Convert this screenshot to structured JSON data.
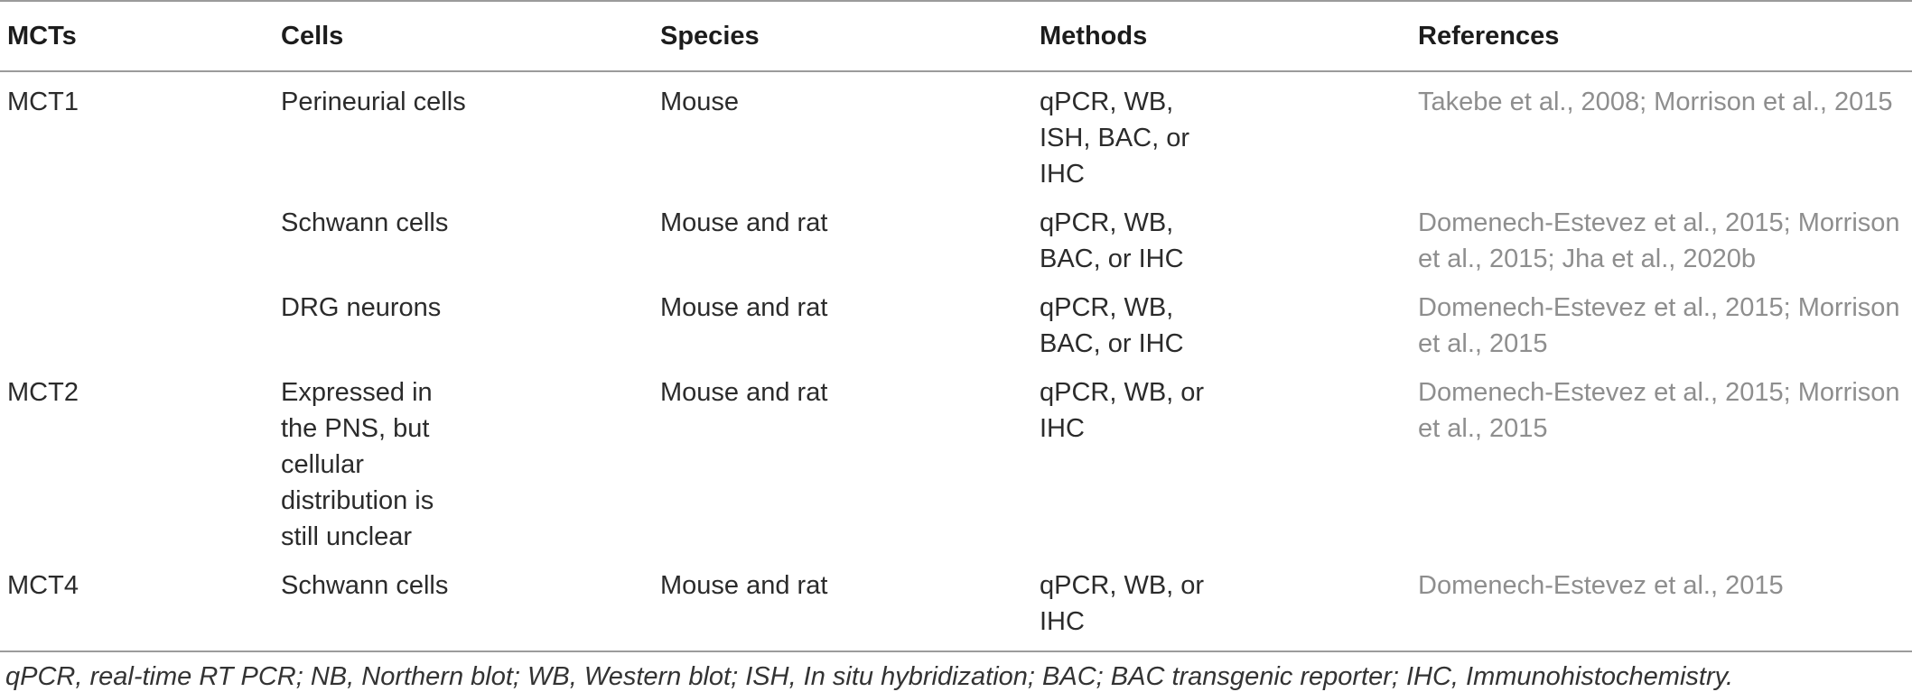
{
  "table": {
    "headers": [
      "MCTs",
      "Cells",
      "Species",
      "Methods",
      "References"
    ],
    "rows": [
      {
        "mct": "MCT1",
        "cells": "Perineurial cells",
        "species": "Mouse",
        "methods": "qPCR, WB, ISH, BAC, or IHC",
        "references": "Takebe et al., 2008; Morrison et al., 2015"
      },
      {
        "mct": "",
        "cells": "Schwann cells",
        "species": "Mouse and rat",
        "methods": "qPCR, WB, BAC, or IHC",
        "references": "Domenech-Estevez et al., 2015; Morrison et al., 2015; Jha et al., 2020b"
      },
      {
        "mct": "",
        "cells": "DRG neurons",
        "species": "Mouse and rat",
        "methods": "qPCR, WB, BAC, or IHC",
        "references": "Domenech-Estevez et al., 2015; Morrison et al., 2015"
      },
      {
        "mct": "MCT2",
        "cells": "Expressed in the PNS, but cellular distribution is still unclear",
        "species": "Mouse and rat",
        "methods": "qPCR, WB, or IHC",
        "references": "Domenech-Estevez et al., 2015; Morrison et al., 2015"
      },
      {
        "mct": "MCT4",
        "cells": "Schwann cells",
        "species": "Mouse and rat",
        "methods": "qPCR, WB, or IHC",
        "references": "Domenech-Estevez et al., 2015"
      }
    ]
  },
  "footnote": "qPCR, real-time RT PCR; NB, Northern blot; WB, Western blot; ISH, In situ hybridization; BAC; BAC transgenic reporter; IHC, Immunohistochemistry.",
  "colors": {
    "reference_text": "#8e8e8e",
    "rule_lines": "#9b9b9b"
  }
}
